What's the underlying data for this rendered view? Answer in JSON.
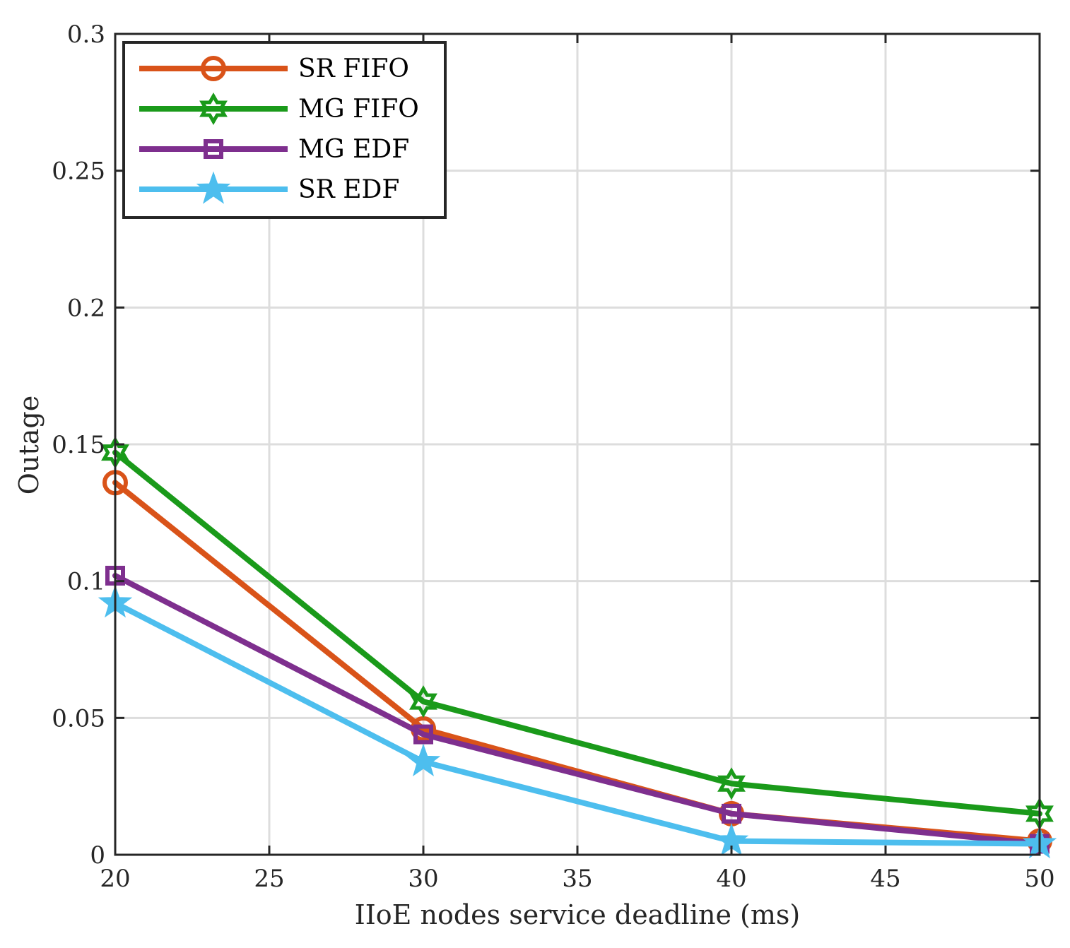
{
  "chart_data": {
    "type": "line",
    "title": "",
    "xlabel": "IIoE nodes service deadline (ms)",
    "ylabel": "Outage",
    "xlim": [
      20,
      50
    ],
    "ylim": [
      0,
      0.3
    ],
    "xticks": [
      20,
      25,
      30,
      35,
      40,
      45,
      50
    ],
    "yticks": [
      0,
      0.05,
      0.1,
      0.15,
      0.2,
      0.25,
      0.3
    ],
    "xtick_labels": [
      "20",
      "25",
      "30",
      "35",
      "40",
      "45",
      "50"
    ],
    "ytick_labels": [
      "0",
      "0.05",
      "0.1",
      "0.15",
      "0.2",
      "0.25",
      "0.3"
    ],
    "grid": true,
    "legend_position": "top-left",
    "x": [
      20,
      30,
      40,
      50
    ],
    "series": [
      {
        "name": "SR FIFO",
        "color": "#D95319",
        "marker": "circle",
        "values": [
          0.136,
          0.046,
          0.015,
          0.005
        ]
      },
      {
        "name": "MG FIFO",
        "color": "#1A9A1A",
        "marker": "hexagram",
        "values": [
          0.147,
          0.056,
          0.026,
          0.015
        ]
      },
      {
        "name": "MG EDF",
        "color": "#7E2F8E",
        "marker": "square",
        "values": [
          0.102,
          0.044,
          0.015,
          0.004
        ]
      },
      {
        "name": "SR EDF",
        "color": "#4DBEEE",
        "marker": "pentagram",
        "values": [
          0.092,
          0.034,
          0.005,
          0.004
        ]
      }
    ]
  }
}
